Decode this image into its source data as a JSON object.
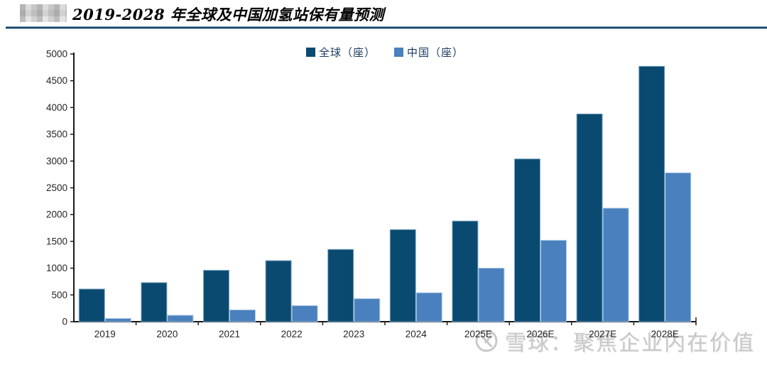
{
  "header": {
    "title": "2019-2028 年全球及中国加氢站保有量预测"
  },
  "watermark": {
    "icon": "xueqiu-logo-icon",
    "text": "雪球：聚焦企业内在价值",
    "color": "#c9c9c9"
  },
  "chart_data": {
    "type": "bar",
    "title": "2019-2028 年全球及中国加氢站保有量预测",
    "categories": [
      "2019",
      "2020",
      "2021",
      "2022",
      "2023",
      "2024",
      "2025E",
      "2026E",
      "2027E",
      "2028E"
    ],
    "series": [
      {
        "name": "全球（座）",
        "color": "#0a4a70",
        "border": "#7fa8c6",
        "values": [
          610,
          730,
          960,
          1140,
          1350,
          1720,
          1880,
          3040,
          3880,
          4770
        ]
      },
      {
        "name": "中国（座）",
        "color": "#4a80bd",
        "border": "#abc8e4",
        "values": [
          60,
          120,
          220,
          300,
          430,
          540,
          1000,
          1520,
          2120,
          2780
        ]
      }
    ],
    "xlabel": "",
    "ylabel": "",
    "ylim": [
      0,
      5000
    ],
    "ytick_step": 500,
    "grid": false,
    "legend_position": "top",
    "axis_color": "#1a1a1a"
  }
}
